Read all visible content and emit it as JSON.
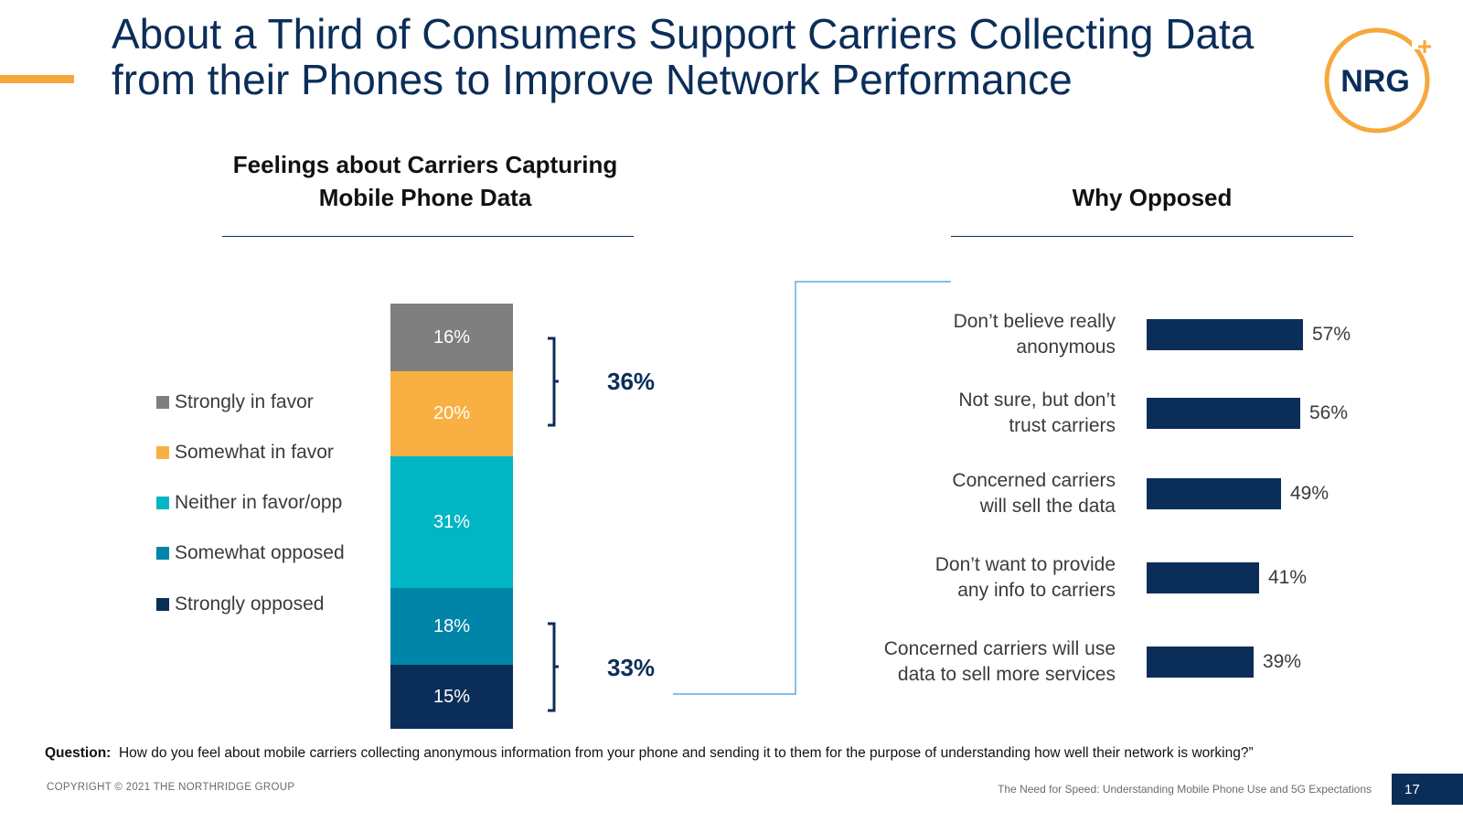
{
  "title": "About a Third of Consumers Support Carriers Collecting Data from their Phones to Improve Network Performance",
  "logo": {
    "text": "NRG",
    "plus": "+"
  },
  "chart_data": [
    {
      "type": "bar",
      "stacked": true,
      "title": "Feelings about Carriers Capturing Mobile Phone Data",
      "categories": [
        "Strongly in favor",
        "Somewhat in favor",
        "Neither in favor/opp",
        "Somewhat opposed",
        "Strongly opposed"
      ],
      "values": [
        16,
        20,
        31,
        18,
        15
      ],
      "labels": [
        "16%",
        "20%",
        "31%",
        "18%",
        "15%"
      ],
      "colors": [
        "#7f7f7f",
        "#f9b042",
        "#00b5c4",
        "#0084a8",
        "#0b2e59"
      ],
      "brackets": [
        {
          "label": "36%",
          "spans": [
            "Strongly in favor",
            "Somewhat in favor"
          ]
        },
        {
          "label": "33%",
          "spans": [
            "Somewhat opposed",
            "Strongly opposed"
          ]
        }
      ]
    },
    {
      "type": "bar",
      "orientation": "horizontal",
      "title": "Why Opposed",
      "categories": [
        "Don’t believe really\nanonymous",
        "Not sure, but don’t\ntrust carriers",
        "Concerned carriers\nwill sell the data",
        "Don’t want to provide\nany info to carriers",
        "Concerned carriers will use\ndata to sell more services"
      ],
      "values": [
        57,
        56,
        49,
        41,
        39
      ],
      "labels": [
        "57%",
        "56%",
        "49%",
        "41%",
        "39%"
      ],
      "color": "#0b2e59",
      "xlim": [
        0,
        100
      ]
    }
  ],
  "footer": {
    "question_label": "Question:",
    "question": "How do you feel about mobile carriers collecting anonymous information from your phone and sending it to them for the purpose of understanding how well their network is working?”",
    "copyright": "COPYRIGHT © 2021 THE NORTHRIDGE GROUP",
    "report_title": "The Need for Speed: Understanding Mobile Phone Use and 5G Expectations",
    "page_number": "17"
  }
}
